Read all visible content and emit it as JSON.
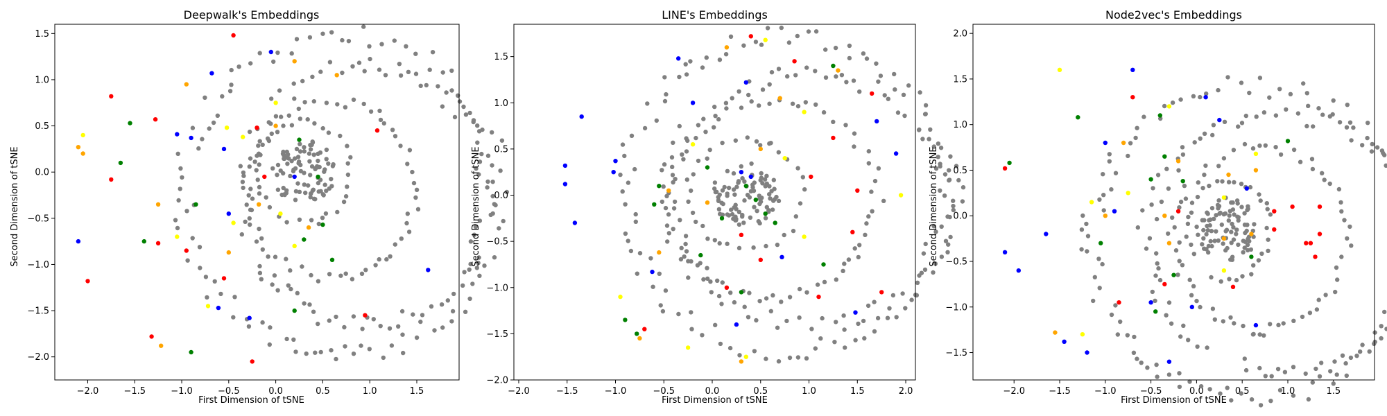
{
  "colors": {
    "gray": "#808080",
    "blue": "#0000ff",
    "red": "#ff0000",
    "green": "#008000",
    "orange": "#ffa500",
    "yellow": "#ffff00"
  },
  "chart_data": [
    {
      "type": "scatter",
      "title": "Deepwalk's Embeddings",
      "xlabel": "First Dimension of tSNE",
      "ylabel": "Second Dimension of tSNE",
      "xlim": [
        -2.35,
        1.95
      ],
      "ylim": [
        -2.25,
        1.6
      ],
      "xticks": [
        -2.0,
        -1.5,
        -1.0,
        -0.5,
        0.0,
        0.5,
        1.0,
        1.5
      ],
      "yticks": [
        -2.0,
        -1.5,
        -1.0,
        -0.5,
        0.0,
        0.5,
        1.0,
        1.5
      ],
      "grid": false,
      "shape": "concentric rings",
      "highlights": {
        "blue": [
          [
            1.62,
            -1.06
          ],
          [
            -0.28,
            -1.58
          ],
          [
            -0.61,
            -1.47
          ],
          [
            -0.68,
            1.07
          ],
          [
            -1.05,
            0.41
          ],
          [
            -0.9,
            0.37
          ],
          [
            -0.5,
            -0.45
          ],
          [
            0.2,
            -0.05
          ],
          [
            -2.1,
            -0.75
          ],
          [
            -0.05,
            1.3
          ],
          [
            -0.55,
            0.25
          ]
        ],
        "red": [
          [
            1.08,
            0.45
          ],
          [
            -0.25,
            -2.05
          ],
          [
            -0.95,
            -0.85
          ],
          [
            -2.0,
            -1.18
          ],
          [
            -1.75,
            0.82
          ],
          [
            -1.75,
            -0.08
          ],
          [
            -1.28,
            0.57
          ],
          [
            -0.55,
            -1.15
          ],
          [
            -0.2,
            0.48
          ],
          [
            -0.12,
            -0.05
          ],
          [
            0.95,
            -1.55
          ],
          [
            -0.45,
            1.48
          ],
          [
            -1.25,
            -0.77
          ],
          [
            -1.32,
            -1.78
          ]
        ],
        "green": [
          [
            -1.55,
            0.53
          ],
          [
            -0.9,
            -1.95
          ],
          [
            0.3,
            -0.73
          ],
          [
            0.5,
            -0.57
          ],
          [
            0.45,
            -0.05
          ],
          [
            -0.85,
            -0.35
          ],
          [
            -1.4,
            -0.75
          ],
          [
            0.25,
            0.35
          ],
          [
            0.2,
            -1.5
          ],
          [
            0.6,
            -0.95
          ],
          [
            -1.65,
            0.1
          ]
        ],
        "orange": [
          [
            -2.1,
            0.27
          ],
          [
            -1.25,
            -0.35
          ],
          [
            -1.22,
            -1.88
          ],
          [
            -0.95,
            0.95
          ],
          [
            -0.5,
            -0.87
          ],
          [
            0.0,
            0.5
          ],
          [
            0.35,
            -0.6
          ],
          [
            -2.05,
            0.2
          ],
          [
            -0.18,
            -0.35
          ],
          [
            0.2,
            1.2
          ],
          [
            0.65,
            1.05
          ]
        ],
        "yellow": [
          [
            0.0,
            0.75
          ],
          [
            -2.05,
            0.4
          ],
          [
            -1.05,
            -0.7
          ],
          [
            -0.72,
            -1.45
          ],
          [
            0.2,
            -0.8
          ],
          [
            0.05,
            -0.45
          ],
          [
            -0.35,
            0.38
          ],
          [
            -0.52,
            0.48
          ],
          [
            -0.45,
            -0.55
          ]
        ]
      }
    },
    {
      "type": "scatter",
      "title": "LINE's Embeddings",
      "xlabel": "First Dimension of tSNE",
      "ylabel": "Second Dimension of tSNE",
      "xlim": [
        -2.05,
        2.1
      ],
      "ylim": [
        -2.0,
        1.85
      ],
      "xticks": [
        -2.0,
        -1.5,
        -1.0,
        -0.5,
        0.0,
        0.5,
        1.0,
        1.5,
        2.0
      ],
      "yticks": [
        -2.0,
        -1.5,
        -1.0,
        -0.5,
        0.0,
        0.5,
        1.0,
        1.5
      ],
      "grid": false,
      "shape": "concentric rings",
      "highlights": {
        "blue": [
          [
            -1.52,
            0.32
          ],
          [
            -1.0,
            0.37
          ],
          [
            -1.02,
            0.25
          ],
          [
            -1.42,
            -0.3
          ],
          [
            -1.52,
            0.12
          ],
          [
            -0.35,
            1.48
          ],
          [
            -0.62,
            -0.83
          ],
          [
            0.35,
            1.22
          ],
          [
            0.25,
            -1.4
          ],
          [
            0.72,
            -0.67
          ],
          [
            0.3,
            0.25
          ],
          [
            0.4,
            0.2
          ],
          [
            1.48,
            -1.27
          ],
          [
            1.7,
            0.8
          ],
          [
            1.9,
            0.45
          ],
          [
            -0.2,
            1.0
          ],
          [
            -1.35,
            0.85
          ]
        ],
        "red": [
          [
            0.85,
            1.45
          ],
          [
            1.1,
            -1.1
          ],
          [
            1.5,
            0.05
          ],
          [
            1.65,
            1.1
          ],
          [
            0.5,
            -0.7
          ],
          [
            0.3,
            -0.43
          ],
          [
            1.02,
            0.2
          ],
          [
            -0.7,
            -1.45
          ],
          [
            1.25,
            0.62
          ],
          [
            1.45,
            -0.4
          ],
          [
            1.75,
            -1.05
          ],
          [
            0.4,
            1.72
          ],
          [
            0.15,
            -1.0
          ]
        ],
        "green": [
          [
            -0.9,
            -1.35
          ],
          [
            -0.78,
            -1.5
          ],
          [
            -0.55,
            0.1
          ],
          [
            -0.6,
            -0.1
          ],
          [
            0.3,
            -1.05
          ],
          [
            0.45,
            -0.05
          ],
          [
            0.65,
            -0.3
          ],
          [
            1.25,
            1.4
          ],
          [
            1.15,
            -0.75
          ],
          [
            0.1,
            -0.25
          ],
          [
            -0.05,
            0.3
          ],
          [
            0.35,
            0.1
          ],
          [
            0.55,
            -0.2
          ],
          [
            -0.12,
            -0.65
          ]
        ],
        "orange": [
          [
            -0.75,
            -1.55
          ],
          [
            0.3,
            -1.8
          ],
          [
            -0.55,
            -0.62
          ],
          [
            -0.05,
            -0.08
          ],
          [
            0.15,
            1.6
          ],
          [
            0.5,
            0.5
          ],
          [
            1.3,
            1.35
          ],
          [
            0.7,
            1.05
          ],
          [
            -0.45,
            0.05
          ]
        ],
        "yellow": [
          [
            0.55,
            1.68
          ],
          [
            -0.95,
            -1.1
          ],
          [
            -0.25,
            -1.65
          ],
          [
            0.95,
            0.9
          ],
          [
            0.95,
            -0.45
          ],
          [
            1.95,
            0.0
          ],
          [
            0.75,
            0.4
          ],
          [
            -0.2,
            0.55
          ],
          [
            0.35,
            -1.75
          ]
        ]
      }
    },
    {
      "type": "scatter",
      "title": "Node2vec's Embeddings",
      "xlabel": "First Dimension of tSNE",
      "ylabel": "Second Dimension of tSNE",
      "xlim": [
        -2.45,
        1.95
      ],
      "ylim": [
        -1.8,
        2.1
      ],
      "xticks": [
        -2.0,
        -1.5,
        -1.0,
        -0.5,
        0.0,
        0.5,
        1.0,
        1.5
      ],
      "yticks": [
        -1.5,
        -1.0,
        -0.5,
        0.0,
        0.5,
        1.0,
        1.5,
        2.0
      ],
      "grid": false,
      "shape": "concentric rings",
      "highlights": {
        "blue": [
          [
            -2.1,
            -0.4
          ],
          [
            -1.95,
            -0.6
          ],
          [
            -1.65,
            -0.2
          ],
          [
            -1.45,
            -1.38
          ],
          [
            -1.2,
            -1.5
          ],
          [
            -0.7,
            1.6
          ],
          [
            -1.0,
            0.8
          ],
          [
            -0.9,
            0.05
          ],
          [
            -0.5,
            -0.95
          ],
          [
            -0.05,
            -1.0
          ],
          [
            0.25,
            1.05
          ],
          [
            0.1,
            1.3
          ],
          [
            0.55,
            0.3
          ],
          [
            -0.3,
            -1.6
          ],
          [
            0.65,
            -1.2
          ]
        ],
        "red": [
          [
            -2.1,
            0.52
          ],
          [
            -0.7,
            1.3
          ],
          [
            0.85,
            0.05
          ],
          [
            1.05,
            0.1
          ],
          [
            0.85,
            -0.15
          ],
          [
            1.25,
            -0.3
          ],
          [
            1.3,
            -0.45
          ],
          [
            1.35,
            -0.2
          ],
          [
            1.35,
            0.1
          ],
          [
            -0.85,
            -0.95
          ],
          [
            0.4,
            -0.78
          ],
          [
            -0.35,
            -0.75
          ],
          [
            -0.2,
            0.05
          ],
          [
            1.2,
            -0.3
          ]
        ],
        "green": [
          [
            -2.05,
            0.58
          ],
          [
            -1.3,
            1.08
          ],
          [
            -0.35,
            0.65
          ],
          [
            -0.25,
            -0.65
          ],
          [
            0.6,
            -0.45
          ],
          [
            1.0,
            0.82
          ],
          [
            -1.05,
            -0.3
          ],
          [
            -0.15,
            0.38
          ],
          [
            -0.5,
            0.4
          ],
          [
            -0.45,
            -1.05
          ],
          [
            -0.4,
            1.1
          ]
        ],
        "orange": [
          [
            -0.8,
            0.8
          ],
          [
            -1.0,
            0.0
          ],
          [
            -0.3,
            -0.3
          ],
          [
            -0.35,
            0.0
          ],
          [
            0.6,
            -0.2
          ],
          [
            0.65,
            0.5
          ],
          [
            -1.55,
            -1.28
          ],
          [
            -0.2,
            0.6
          ],
          [
            0.3,
            -0.25
          ],
          [
            0.35,
            0.45
          ]
        ],
        "yellow": [
          [
            -1.5,
            1.6
          ],
          [
            -0.3,
            1.2
          ],
          [
            0.65,
            0.68
          ],
          [
            -1.25,
            -1.3
          ],
          [
            0.3,
            0.2
          ],
          [
            -0.75,
            0.25
          ],
          [
            -1.15,
            0.15
          ],
          [
            0.3,
            -0.6
          ]
        ]
      }
    }
  ]
}
